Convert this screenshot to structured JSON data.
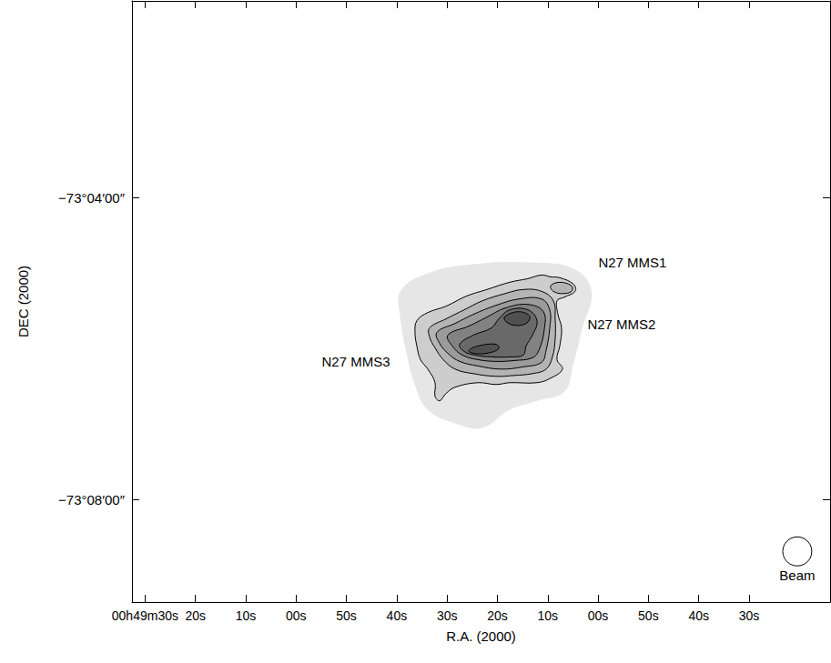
{
  "chart_data": {
    "type": "contour",
    "x_label": "R.A. (2000)",
    "y_label": "DEC (2000)",
    "xlim": [
      2972.6,
      2833.9
    ],
    "ylim": [
      -73.156,
      -73.0231
    ],
    "xticks": [
      {
        "value": 2970,
        "label": "00h49m30s"
      },
      {
        "value": 2960,
        "label": "20s"
      },
      {
        "value": 2950,
        "label": "10s"
      },
      {
        "value": 2940,
        "label": "00s"
      },
      {
        "value": 2930,
        "label": "50s"
      },
      {
        "value": 2920,
        "label": "40s"
      },
      {
        "value": 2910,
        "label": "30s"
      },
      {
        "value": 2900,
        "label": "20s"
      },
      {
        "value": 2890,
        "label": "10s"
      },
      {
        "value": 2880,
        "label": "00s"
      },
      {
        "value": 2870,
        "label": "50s"
      },
      {
        "value": 2860,
        "label": "40s"
      },
      {
        "value": 2850,
        "label": "30s"
      }
    ],
    "yticks": [
      {
        "value": -73.066667,
        "label": "−73°04′00″"
      },
      {
        "value": -73.133333,
        "label": "−73°08′00″"
      }
    ],
    "grid": false,
    "regions": [
      {
        "level": 0,
        "points": [
          [
            2919.26,
            -73.0873
          ],
          [
            2913.83,
            -73.0833
          ],
          [
            2904.79,
            -73.0813
          ],
          [
            2893.94,
            -73.0809
          ],
          [
            2884.9,
            -73.0823
          ],
          [
            2881.28,
            -73.0873
          ],
          [
            2883.09,
            -73.0954
          ],
          [
            2884.9,
            -73.1034
          ],
          [
            2886.71,
            -73.1095
          ],
          [
            2892.13,
            -73.1115
          ],
          [
            2897.56,
            -73.1135
          ],
          [
            2902.98,
            -73.1175
          ],
          [
            2908.41,
            -73.1165
          ],
          [
            2913.83,
            -73.1135
          ],
          [
            2916.55,
            -73.1075
          ],
          [
            2918.35,
            -73.0994
          ],
          [
            2919.26,
            -73.0934
          ]
        ]
      },
      {
        "level": 1,
        "points": [
          [
            2916.0,
            -73.0938
          ],
          [
            2913.83,
            -73.092
          ],
          [
            2910.22,
            -73.0906
          ],
          [
            2906.24,
            -73.0884
          ],
          [
            2902.08,
            -73.0869
          ],
          [
            2897.56,
            -73.0853
          ],
          [
            2893.94,
            -73.0845
          ],
          [
            2891.23,
            -73.0837
          ],
          [
            2889.42,
            -73.0841
          ],
          [
            2887.61,
            -73.0843
          ],
          [
            2884.9,
            -73.0857
          ],
          [
            2884.54,
            -73.0873
          ],
          [
            2886.71,
            -73.0886
          ],
          [
            2888.16,
            -73.0894
          ],
          [
            2887.97,
            -73.0924
          ],
          [
            2887.25,
            -73.0954
          ],
          [
            2887.61,
            -73.0994
          ],
          [
            2888.16,
            -73.1024
          ],
          [
            2887.07,
            -73.1045
          ],
          [
            2889.42,
            -73.1065
          ],
          [
            2892.13,
            -73.1075
          ],
          [
            2897.56,
            -73.1075
          ],
          [
            2900.27,
            -73.1079
          ],
          [
            2903.89,
            -73.1075
          ],
          [
            2908.41,
            -73.1085
          ],
          [
            2910.22,
            -73.1099
          ],
          [
            2911.48,
            -73.1115
          ],
          [
            2912.39,
            -73.1105
          ],
          [
            2912.39,
            -73.1075
          ],
          [
            2913.83,
            -73.1045
          ],
          [
            2915.28,
            -73.1024
          ],
          [
            2916.0,
            -73.0994
          ],
          [
            2916.37,
            -73.0964
          ]
        ]
      },
      {
        "level": 2,
        "points": [
          [
            2913.47,
            -73.0954
          ],
          [
            2910.22,
            -73.0934
          ],
          [
            2906.6,
            -73.0914
          ],
          [
            2902.98,
            -73.0894
          ],
          [
            2898.46,
            -73.0878
          ],
          [
            2894.85,
            -73.0869
          ],
          [
            2891.23,
            -73.0873
          ],
          [
            2888.88,
            -73.0894
          ],
          [
            2888.52,
            -73.0934
          ],
          [
            2888.52,
            -73.0978
          ],
          [
            2889.06,
            -73.1018
          ],
          [
            2890.33,
            -73.1045
          ],
          [
            2893.04,
            -73.1055
          ],
          [
            2896.65,
            -73.1059
          ],
          [
            2900.27,
            -73.1061
          ],
          [
            2904.79,
            -73.1055
          ],
          [
            2908.41,
            -73.1045
          ],
          [
            2910.76,
            -73.1024
          ],
          [
            2912.39,
            -73.0998
          ],
          [
            2913.47,
            -73.0974
          ]
        ]
      },
      {
        "level": 2,
        "points": [
          [
            2889.42,
            -73.0861
          ],
          [
            2887.61,
            -73.0853
          ],
          [
            2885.26,
            -73.0861
          ],
          [
            2885.26,
            -73.0873
          ],
          [
            2887.07,
            -73.0878
          ],
          [
            2888.88,
            -73.0873
          ]
        ]
      },
      {
        "level": 3,
        "points": [
          [
            2912.03,
            -73.0964
          ],
          [
            2908.41,
            -73.0944
          ],
          [
            2904.79,
            -73.0924
          ],
          [
            2900.27,
            -73.0904
          ],
          [
            2895.75,
            -73.089
          ],
          [
            2891.23,
            -73.089
          ],
          [
            2889.6,
            -73.0914
          ],
          [
            2889.6,
            -73.0954
          ],
          [
            2890.33,
            -73.1004
          ],
          [
            2891.23,
            -73.103
          ],
          [
            2894.85,
            -73.104
          ],
          [
            2899.37,
            -73.1045
          ],
          [
            2903.89,
            -73.1038
          ],
          [
            2907.5,
            -73.1028
          ],
          [
            2909.86,
            -73.101
          ],
          [
            2911.48,
            -73.0988
          ]
        ]
      },
      {
        "level": 4,
        "points": [
          [
            2909.86,
            -73.097
          ],
          [
            2905.7,
            -73.095
          ],
          [
            2902.08,
            -73.093
          ],
          [
            2898.46,
            -73.091
          ],
          [
            2893.94,
            -73.0902
          ],
          [
            2890.87,
            -73.0918
          ],
          [
            2890.69,
            -73.0958
          ],
          [
            2891.77,
            -73.1004
          ],
          [
            2893.04,
            -73.102
          ],
          [
            2896.65,
            -73.1026
          ],
          [
            2900.27,
            -73.1028
          ],
          [
            2903.89,
            -73.1024
          ],
          [
            2906.96,
            -73.1014
          ],
          [
            2908.95,
            -73.0994
          ]
        ]
      },
      {
        "level": 5,
        "points": [
          [
            2907.5,
            -73.099
          ],
          [
            2904.79,
            -73.097
          ],
          [
            2901.18,
            -73.0954
          ],
          [
            2899.73,
            -73.0934
          ],
          [
            2897.56,
            -73.0914
          ],
          [
            2893.94,
            -73.0914
          ],
          [
            2892.13,
            -73.0938
          ],
          [
            2893.04,
            -73.097
          ],
          [
            2894.3,
            -73.0994
          ],
          [
            2894.85,
            -73.1014
          ],
          [
            2897.56,
            -73.1018
          ],
          [
            2901.18,
            -73.1018
          ],
          [
            2904.43,
            -73.1014
          ],
          [
            2906.6,
            -73.1006
          ]
        ]
      },
      {
        "level": 6,
        "points": [
          [
            2898.46,
            -73.0928
          ],
          [
            2895.75,
            -73.0918
          ],
          [
            2893.58,
            -73.0928
          ],
          [
            2894.3,
            -73.0944
          ],
          [
            2896.65,
            -73.0948
          ],
          [
            2898.46,
            -73.0938
          ]
        ]
      },
      {
        "level": 6,
        "points": [
          [
            2905.7,
            -73.1004
          ],
          [
            2903.89,
            -73.0994
          ],
          [
            2900.27,
            -73.099
          ],
          [
            2899.73,
            -73.1
          ],
          [
            2902.08,
            -73.101
          ],
          [
            2904.79,
            -73.101
          ]
        ]
      }
    ],
    "annotations": [
      {
        "text": "N27 MMS1",
        "x": 2873.15,
        "y": -73.0809
      },
      {
        "text": "N27 MMS2",
        "x": 2875.32,
        "y": -73.0946
      },
      {
        "text": "N27 MMS3",
        "x": 2928.12,
        "y": -73.1028
      }
    ],
    "beam": {
      "label": "Beam",
      "x": 2840.42,
      "y": -73.1448,
      "diameter": 0.00643
    }
  }
}
